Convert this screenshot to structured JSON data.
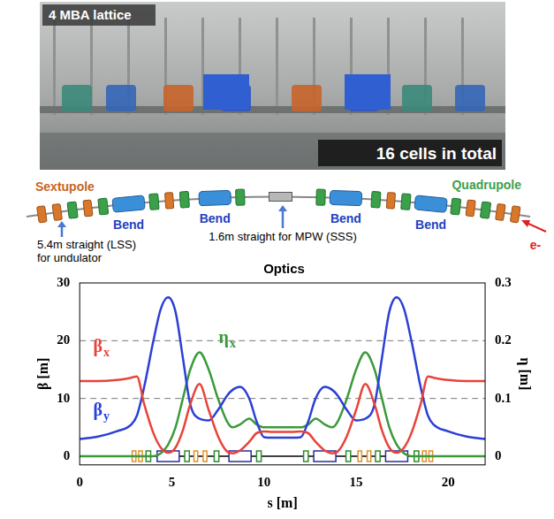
{
  "photo": {
    "label": "4 MBA lattice",
    "caption": "16 cells in total"
  },
  "diagram": {
    "sextupole": "Sextupole",
    "quadrupole": "Quadrupole",
    "bends": [
      "Bend",
      "Bend",
      "Bend",
      "Bend"
    ],
    "beam": "e-",
    "long_straight": [
      "5.4m straight (LSS)",
      "for undulator"
    ],
    "short_straight": "1.6m straight for MPW (SSS)"
  },
  "chart_data": {
    "type": "line",
    "title": "Optics",
    "x_label": "s [m]",
    "y_label": "β [m]",
    "y2_label": "η [m]",
    "x": [
      0,
      1,
      2,
      2.8,
      3.1,
      3.5,
      4,
      4.4,
      4.8,
      5.2,
      5.6,
      6,
      6.5,
      7,
      7.5,
      8,
      8.3,
      8.7,
      9.2,
      9.6,
      10,
      10.5,
      11,
      11.5,
      12,
      12.4,
      12.8,
      13.3,
      13.7,
      14,
      14.5,
      15,
      15.5,
      16,
      16.4,
      16.8,
      17.2,
      17.6,
      18,
      18.5,
      18.9,
      19.2,
      20,
      21,
      22
    ],
    "series": [
      {
        "name": "βx",
        "color": "#e8433a",
        "values": [
          13,
          13,
          13.2,
          13.6,
          13.8,
          9,
          4,
          1.5,
          0.6,
          1.5,
          4.5,
          9,
          12.5,
          8,
          3.5,
          0.8,
          0.5,
          1,
          2.5,
          4,
          4.3,
          4.2,
          4.2,
          4.2,
          4.3,
          4,
          2.5,
          1,
          0.5,
          0.8,
          3.5,
          8,
          12.5,
          9,
          4.5,
          1.5,
          0.6,
          1.5,
          4,
          9,
          13.8,
          13.6,
          13.2,
          13,
          13
        ]
      },
      {
        "name": "βy",
        "color": "#2b3fd6",
        "values": [
          3,
          3.4,
          4.3,
          5.5,
          7,
          12,
          20,
          25.5,
          27.5,
          25,
          17,
          9,
          6.5,
          6.2,
          8,
          10.5,
          11.5,
          12,
          10,
          6,
          3.3,
          3.2,
          3.2,
          3.2,
          3.3,
          6,
          10,
          12,
          11.5,
          10.5,
          8,
          6.2,
          6.5,
          9,
          17,
          25,
          27.5,
          25.5,
          20,
          12,
          7,
          5.5,
          4.3,
          3.4,
          3
        ]
      },
      {
        "name": "ηx",
        "color": "#3a9a3a",
        "axis": "y2",
        "values": [
          0,
          0,
          0,
          0,
          0,
          0,
          0,
          0.005,
          0.02,
          0.05,
          0.1,
          0.15,
          0.18,
          0.15,
          0.1,
          0.06,
          0.05,
          0.055,
          0.065,
          0.055,
          0.05,
          0.05,
          0.05,
          0.05,
          0.05,
          0.055,
          0.065,
          0.055,
          0.05,
          0.06,
          0.1,
          0.15,
          0.18,
          0.15,
          0.1,
          0.05,
          0.02,
          0.005,
          0,
          0,
          0,
          0,
          0,
          0,
          0
        ]
      }
    ],
    "xlim": [
      0,
      22
    ],
    "xticks": [
      0,
      5,
      10,
      15,
      20
    ],
    "ylim": [
      -1.5,
      30
    ],
    "yticks": [
      0,
      10,
      20,
      30
    ],
    "y2lim": [
      -0.015,
      0.3
    ],
    "y2ticks": [
      0,
      0.1,
      0.2,
      0.3
    ],
    "grid": true,
    "magnets": {
      "bend": [
        [
          4.2,
          5.4
        ],
        [
          8.1,
          9.3
        ],
        [
          12.7,
          13.9
        ],
        [
          16.6,
          17.8
        ]
      ],
      "quadrupole": [
        [
          3.6,
          3.85
        ],
        [
          5.7,
          5.95
        ],
        [
          7.3,
          7.55
        ],
        [
          9.6,
          9.85
        ],
        [
          12.15,
          12.4
        ],
        [
          14.45,
          14.7
        ],
        [
          16.05,
          16.3
        ],
        [
          18.15,
          18.4
        ]
      ],
      "sextupole": [
        [
          2.85,
          3.05
        ],
        [
          3.2,
          3.4
        ],
        [
          6.2,
          6.4
        ],
        [
          6.7,
          6.9
        ],
        [
          15.1,
          15.3
        ],
        [
          15.6,
          15.8
        ],
        [
          18.6,
          18.8
        ],
        [
          18.95,
          19.15
        ]
      ]
    }
  }
}
